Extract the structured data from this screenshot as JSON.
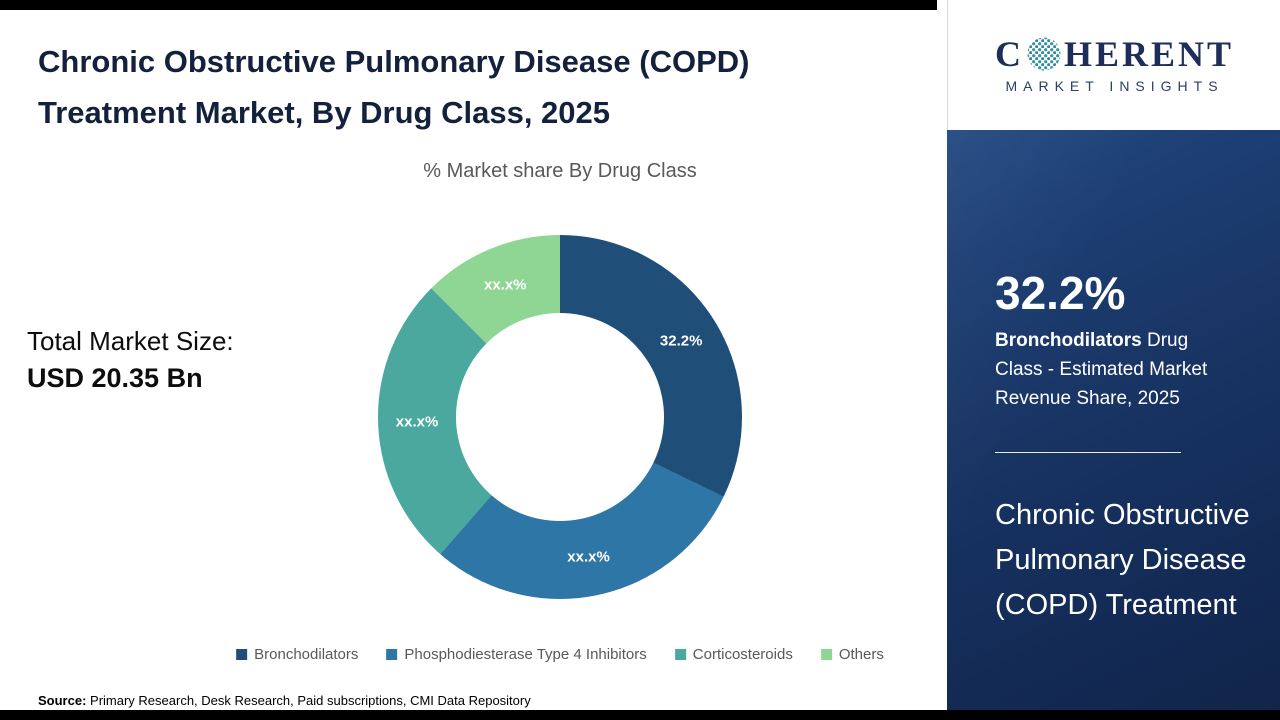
{
  "page": {
    "title_line1": "Chronic Obstructive Pulmonary Disease (COPD)",
    "title_line2": "Treatment Market, By Drug Class, 2025",
    "subtitle": "% Market share By Drug Class",
    "total_label": "Total Market Size:",
    "total_value": "USD 20.35 Bn",
    "source_label": "Source:",
    "source_text": " Primary Research, Desk Research, Paid subscriptions, CMI Data Repository"
  },
  "chart_data": {
    "type": "pie",
    "donut": true,
    "title": "% Market share By Drug Class",
    "categories": [
      "Bronchodilators",
      "Phosphodiesterase Type 4 Inhibitors",
      "Corticosteroids",
      "Others"
    ],
    "values": [
      32.2,
      29.2,
      26.1,
      12.5
    ],
    "labels": [
      "32.2%",
      "xx.x%",
      "xx.x%",
      "xx.x%"
    ],
    "colors": [
      "#1F4E79",
      "#2E76A6",
      "#4AA89F",
      "#8FD694"
    ],
    "legend_position": "bottom"
  },
  "sidebar": {
    "logo": {
      "c": "C",
      "rest": "HERENT",
      "sub": "MARKET INSIGHTS"
    },
    "stat_value": "32.2%",
    "stat_bold": "Bronchodilators",
    "stat_rest": " Drug Class - Estimated Market Revenue Share, 2025",
    "headline": "Chronic Obstructive Pulmonary Disease (COPD) Treatment"
  }
}
